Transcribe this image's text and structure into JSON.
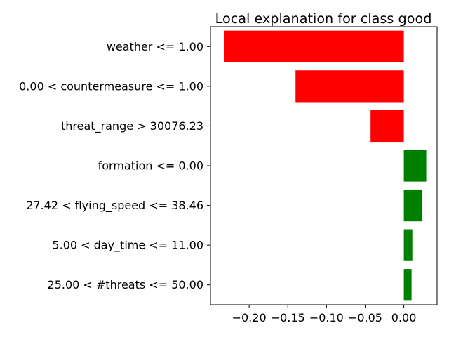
{
  "chart_data": {
    "type": "bar",
    "orientation": "horizontal",
    "title": "Local explanation for class good",
    "xlabel": "",
    "ylabel": "",
    "categories": [
      "weather <= 1.00",
      "0.00 < countermeasure <= 1.00",
      "threat_range > 30076.23",
      "formation <= 0.00",
      "27.42 < flying_speed <= 38.46",
      "5.00 < day_time <= 11.00",
      "25.00 < #threats <= 50.00"
    ],
    "values": [
      -0.232,
      -0.14,
      -0.043,
      0.029,
      0.024,
      0.011,
      0.01
    ],
    "xlim": [
      -0.25,
      0.043
    ],
    "xticks": [
      -0.2,
      -0.15,
      -0.1,
      -0.05,
      0.0
    ],
    "xtick_labels": [
      "−0.20",
      "−0.15",
      "−0.10",
      "−0.05",
      "0.00"
    ],
    "grid": false,
    "colors": {
      "positive": "#008000",
      "negative": "#ff0000"
    }
  }
}
